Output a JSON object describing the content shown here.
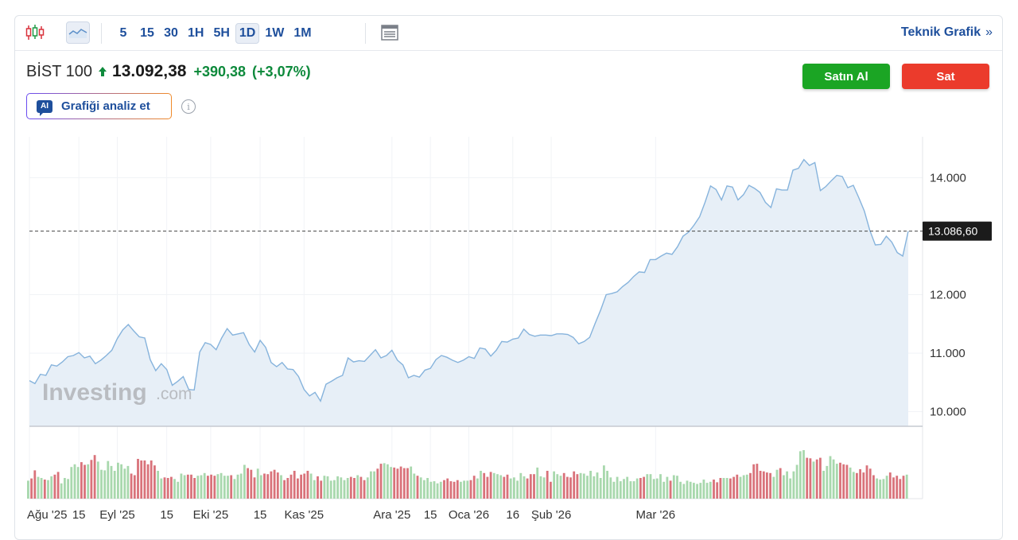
{
  "toolbar": {
    "chart_type_icons": [
      "candlestick-icon",
      "area-chart-icon"
    ],
    "intervals": [
      "5",
      "15",
      "30",
      "1H",
      "5H",
      "1D",
      "1W",
      "1M"
    ],
    "active_interval": "1D",
    "layout_icon": "layout-icon",
    "tech_link": "Teknik Grafik",
    "tech_link_chevron": "»"
  },
  "quote": {
    "name": "BİST 100",
    "price": "13.092,38",
    "change": "+390,38",
    "change_pct": "(+3,07%)",
    "direction": "up",
    "up_color": "#0e8a3c"
  },
  "actions": {
    "buy_label": "Satın Al",
    "sell_label": "Sat",
    "buy_color": "#1ba524",
    "sell_color": "#eb3b2c"
  },
  "ai": {
    "badge": "AI",
    "label": "Grafiği analiz et"
  },
  "watermark": {
    "main": "Investing",
    "suffix": ".com"
  },
  "chart_data": {
    "type": "area",
    "title": "",
    "xlabel": "",
    "ylabel": "",
    "ylim": [
      9750,
      14700
    ],
    "y_ticks": [
      10000,
      11000,
      12000,
      14000
    ],
    "y_tick_labels": [
      "10.000",
      "11.000",
      "12.000",
      "14.000"
    ],
    "last_value_label": "13.086,60",
    "last_value": 13086.6,
    "x_tick_labels": [
      "Ağu '25",
      "15",
      "Eyl '25",
      "15",
      "Eki '25",
      "15",
      "Kas '25",
      "Ara '25",
      "15",
      "Oca '26",
      "16",
      "Şub '26",
      "Mar '26"
    ],
    "x_tick_index": [
      0,
      9,
      16,
      25,
      33,
      42,
      50,
      66,
      73,
      80,
      88,
      95,
      114
    ],
    "series": [
      {
        "name": "",
        "values": [
          10530,
          10480,
          10640,
          10620,
          10800,
          10780,
          10850,
          10940,
          10960,
          11010,
          10920,
          10950,
          10820,
          10880,
          10960,
          11050,
          11250,
          11400,
          11490,
          11380,
          11280,
          11260,
          10890,
          10700,
          10820,
          10720,
          10450,
          10520,
          10600,
          10380,
          10370,
          11020,
          11180,
          11150,
          11060,
          11260,
          11420,
          11310,
          11330,
          11350,
          11150,
          11020,
          11220,
          11100,
          10840,
          10770,
          10840,
          10730,
          10720,
          10600,
          10380,
          10270,
          10330,
          10180,
          10470,
          10520,
          10580,
          10620,
          10920,
          10850,
          10870,
          10860,
          10960,
          11060,
          10920,
          10960,
          11050,
          10880,
          10800,
          10580,
          10620,
          10590,
          10710,
          10740,
          10890,
          10960,
          10930,
          10880,
          10840,
          10880,
          10940,
          10910,
          11090,
          11070,
          10950,
          11050,
          11200,
          11190,
          11240,
          11260,
          11410,
          11320,
          11290,
          11310,
          11310,
          11300,
          11330,
          11330,
          11320,
          11270,
          11160,
          11200,
          11270,
          11510,
          11740,
          12000,
          12020,
          12050,
          12140,
          12210,
          12310,
          12390,
          12380,
          12600,
          12600,
          12660,
          12710,
          12690,
          12820,
          13000,
          13070,
          13190,
          13330,
          13580,
          13860,
          13800,
          13620,
          13860,
          13840,
          13620,
          13710,
          13870,
          13820,
          13750,
          13580,
          13490,
          13810,
          13790,
          13790,
          14130,
          14160,
          14310,
          14210,
          14260,
          13780,
          13850,
          13950,
          14040,
          14020,
          13830,
          13870,
          13660,
          13430,
          13100,
          12850,
          12860,
          13000,
          12900,
          12720,
          12660,
          13086.6
        ]
      }
    ],
    "volume": {
      "values": [
        33,
        37,
        52,
        40,
        38,
        35,
        34,
        41,
        44,
        49,
        28,
        38,
        36,
        58,
        63,
        58,
        67,
        62,
        63,
        71,
        80,
        68,
        53,
        52,
        69,
        60,
        51,
        66,
        63,
        55,
        60,
        46,
        43,
        73,
        70,
        70,
        63,
        70,
        61,
        51,
        37,
        39,
        38,
        40,
        36,
        31,
        46,
        43,
        44,
        44,
        38,
        42,
        43,
        47,
        42,
        44,
        42,
        45,
        47,
        42,
        42,
        43,
        36,
        44,
        46,
        62,
        56,
        53,
        39,
        55,
        43,
        46,
        45,
        50,
        53,
        48,
        43,
        34,
        38,
        44,
        51,
        37,
        44,
        46,
        51,
        46,
        34,
        41,
        33,
        42,
        41,
        33,
        34,
        41,
        39,
        34,
        38,
        40,
        38,
        43,
        40,
        34,
        39,
        50,
        50,
        55,
        64,
        65,
        63,
        58,
        57,
        55,
        59,
        56,
        56,
        59,
        46,
        42,
        39,
        34,
        38,
        31,
        32,
        28,
        31,
        34,
        37,
        32,
        31,
        34,
        31,
        33,
        33,
        34,
        42,
        37,
        51,
        47,
        40,
        49,
        47,
        45,
        43,
        40,
        44,
        37,
        39,
        33,
        47,
        41,
        37,
        45,
        45,
        57,
        41,
        39,
        51,
        31,
        50,
        45,
        42,
        47,
        40,
        39,
        50,
        45,
        47,
        46,
        42,
        51,
        41,
        48,
        38,
        61,
        51,
        39,
        31,
        40,
        32,
        36,
        40,
        32,
        32,
        37,
        38,
        40,
        45,
        45,
        36,
        37,
        45,
        31,
        40,
        33,
        43,
        42,
        31,
        27,
        33,
        31,
        29,
        27,
        29,
        35,
        29,
        31,
        35,
        30,
        38,
        38,
        38,
        37,
        40,
        44,
        40,
        43,
        44,
        47,
        63,
        64,
        51,
        50,
        48,
        47,
        40,
        53,
        56,
        43,
        50,
        37,
        50,
        62,
        87,
        89,
        75,
        74,
        68,
        72,
        75,
        51,
        60,
        78,
        72,
        64,
        66,
        63,
        62,
        57,
        49,
        47,
        54,
        48,
        61,
        55,
        43,
        37,
        35,
        36,
        42,
        48,
        39,
        42,
        36,
        42,
        44
      ],
      "up_color": "#a8d8ad",
      "down_color": "#d9727a"
    },
    "grid": true,
    "line_color": "#86b3dc",
    "fill_color": "#e7eff7",
    "legend": "none"
  }
}
